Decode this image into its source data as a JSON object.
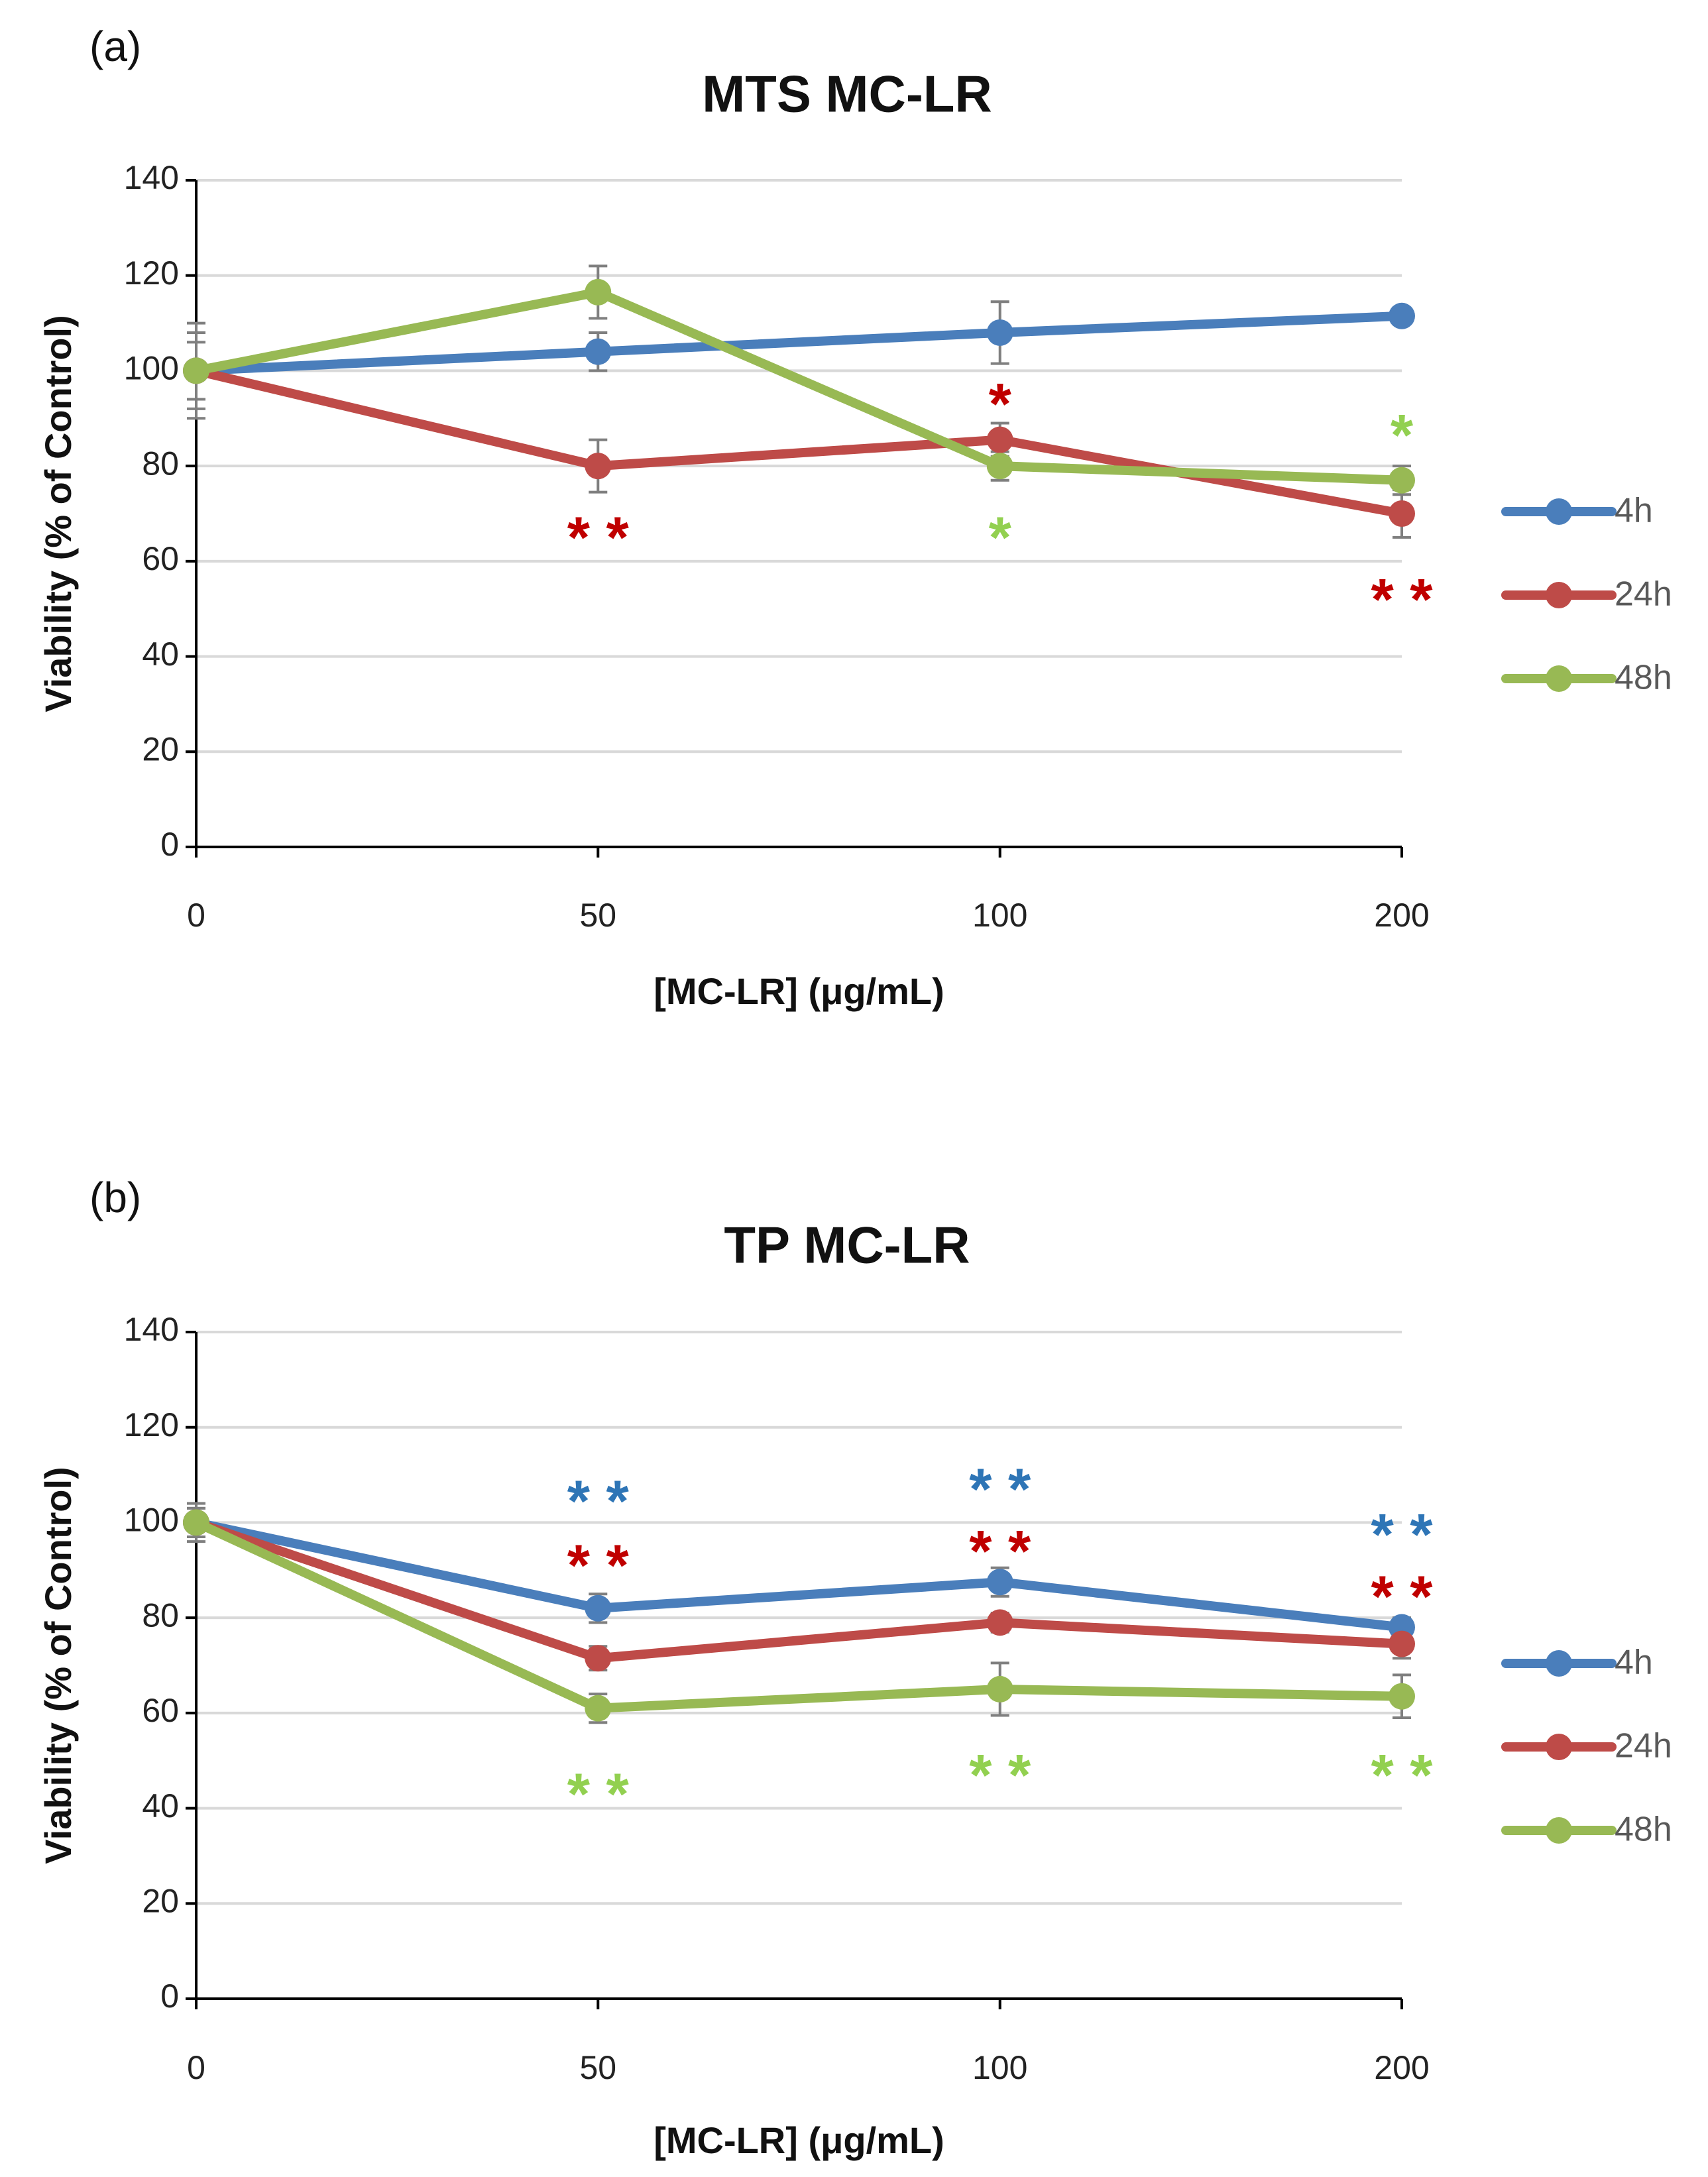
{
  "colors": {
    "4h": "#4a7ebb",
    "24h": "#be4b48",
    "48h": "#98b954",
    "grid": "#d9d9d9",
    "axis": "#000000",
    "errbar": "#7f7f7f",
    "sig_4h": "#2e75b6",
    "sig_24h": "#c00000",
    "sig_48h": "#92d050"
  },
  "chart_data": [
    {
      "type": "line",
      "panel_label": "(a)",
      "title": "MTS MC-LR",
      "xlabel": "[MC-LR] (μg/mL)",
      "ylabel": "Viability (% of Control)",
      "categories": [
        "0",
        "50",
        "100",
        "200"
      ],
      "ylim": [
        0,
        140
      ],
      "yticks": [
        0,
        20,
        40,
        60,
        80,
        100,
        120,
        140
      ],
      "yticklabels": [
        "0",
        "20",
        "40",
        "60",
        "80",
        "100",
        "120",
        "140"
      ],
      "grid": true,
      "legend_position": "right",
      "series": [
        {
          "name": "4h",
          "color_key": "4h",
          "values": [
            100,
            104,
            108,
            111.5
          ],
          "errors": [
            10,
            4,
            6.5,
            1
          ]
        },
        {
          "name": "24h",
          "color_key": "24h",
          "values": [
            100,
            80,
            85.5,
            70
          ],
          "errors": [
            6,
            5.5,
            3.5,
            5
          ]
        },
        {
          "name": "48h",
          "color_key": "48h",
          "values": [
            100,
            116.5,
            80,
            77
          ],
          "errors": [
            8,
            5.5,
            3,
            3
          ]
        }
      ],
      "annotations": [
        {
          "text": "**",
          "category_index": 1,
          "y": 65,
          "color_key": "sig_24h"
        },
        {
          "text": "*",
          "category_index": 2,
          "y": 93,
          "color_key": "sig_24h"
        },
        {
          "text": "*",
          "category_index": 2,
          "y": 65,
          "color_key": "sig_48h"
        },
        {
          "text": "*",
          "category_index": 3,
          "y": 86.5,
          "color_key": "sig_48h"
        },
        {
          "text": "**",
          "category_index": 3,
          "y": 52,
          "color_key": "sig_24h"
        }
      ]
    },
    {
      "type": "line",
      "panel_label": "(b)",
      "title": "TP MC-LR",
      "xlabel": "[MC-LR] (μg/mL)",
      "ylabel": "Viability (% of Control)",
      "categories": [
        "0",
        "50",
        "100",
        "200"
      ],
      "ylim": [
        0,
        140
      ],
      "yticks": [
        0,
        20,
        40,
        60,
        80,
        100,
        120,
        140
      ],
      "yticklabels": [
        "0",
        "20",
        "40",
        "60",
        "80",
        "100",
        "120",
        "140"
      ],
      "grid": true,
      "legend_position": "right",
      "series": [
        {
          "name": "4h",
          "color_key": "4h",
          "values": [
            100,
            82,
            87.5,
            78
          ],
          "errors": [
            4,
            3,
            3,
            2
          ]
        },
        {
          "name": "24h",
          "color_key": "24h",
          "values": [
            100,
            71.5,
            79,
            74.5
          ],
          "errors": [
            3,
            2.5,
            2,
            3
          ]
        },
        {
          "name": "48h",
          "color_key": "48h",
          "values": [
            100,
            61,
            65,
            63.5
          ],
          "errors": [
            3,
            3,
            5.5,
            4.5
          ]
        }
      ],
      "annotations": [
        {
          "text": "**",
          "category_index": 1,
          "y": 104.5,
          "color_key": "sig_4h"
        },
        {
          "text": "**",
          "category_index": 1,
          "y": 91,
          "color_key": "sig_24h"
        },
        {
          "text": "**",
          "category_index": 1,
          "y": 43,
          "color_key": "sig_48h"
        },
        {
          "text": "**",
          "category_index": 2,
          "y": 107,
          "color_key": "sig_4h"
        },
        {
          "text": "**",
          "category_index": 2,
          "y": 94,
          "color_key": "sig_24h"
        },
        {
          "text": "**",
          "category_index": 2,
          "y": 47,
          "color_key": "sig_48h"
        },
        {
          "text": "**",
          "category_index": 3,
          "y": 97.5,
          "color_key": "sig_4h"
        },
        {
          "text": "**",
          "category_index": 3,
          "y": 84.5,
          "color_key": "sig_24h"
        },
        {
          "text": "**",
          "category_index": 3,
          "y": 47,
          "color_key": "sig_48h"
        }
      ]
    }
  ]
}
